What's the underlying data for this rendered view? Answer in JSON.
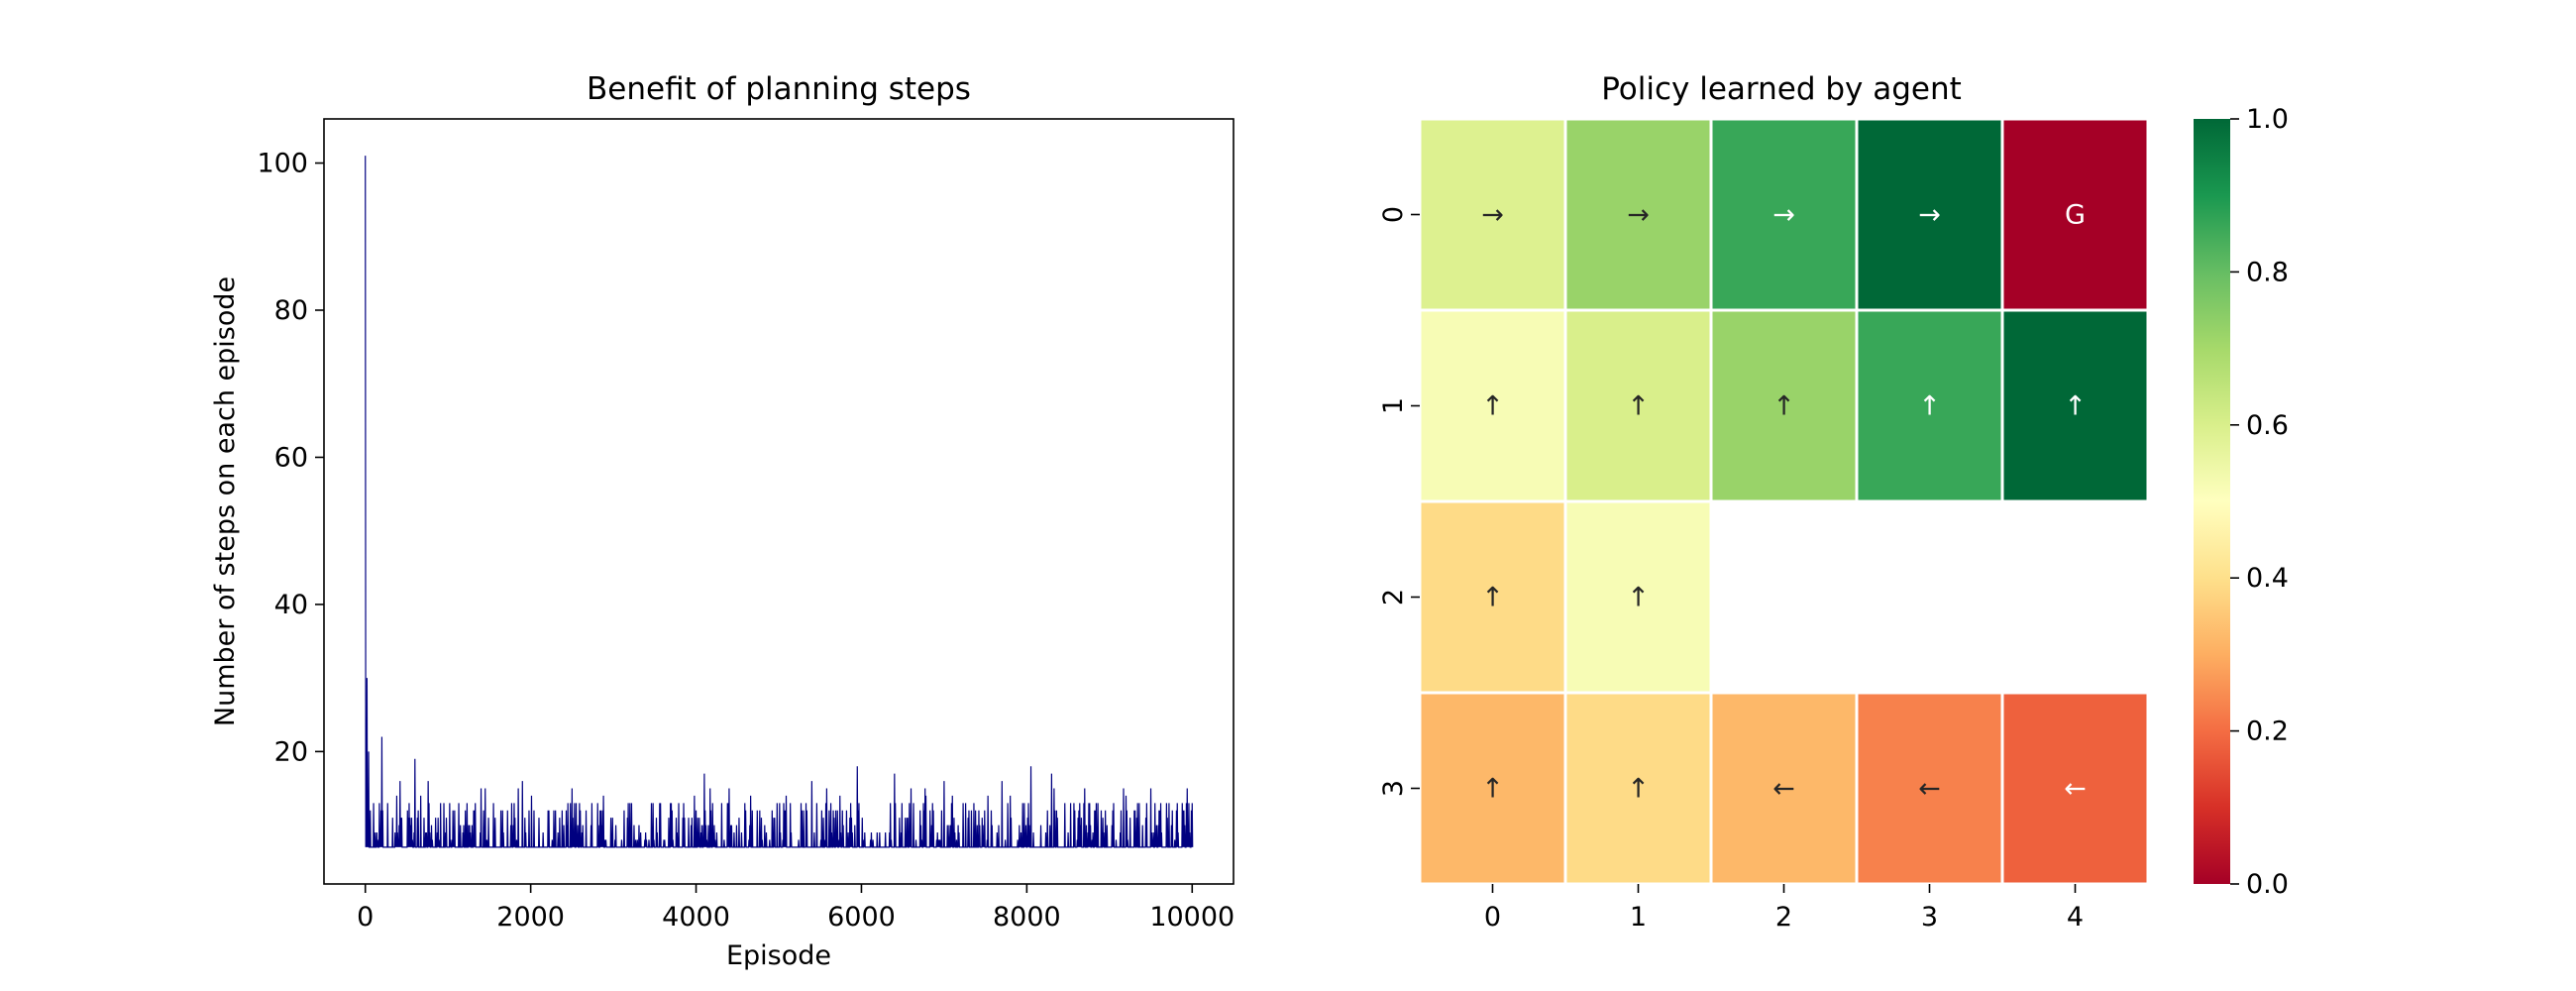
{
  "chart_data": [
    {
      "type": "line",
      "title": "Benefit of planning steps",
      "xlabel": "Episode",
      "ylabel": "Number of steps on each episode",
      "xlim": [
        -500,
        10500
      ],
      "ylim": [
        2,
        106
      ],
      "xticks": [
        0,
        2000,
        4000,
        6000,
        8000,
        10000
      ],
      "yticks": [
        20,
        40,
        60,
        80,
        100
      ],
      "grid": false,
      "series": [
        {
          "color": "#000080",
          "episodes": 10000,
          "baseline_min": 7,
          "peak_points": [
            [
              0,
              101
            ],
            [
              20,
              30
            ],
            [
              40,
              20
            ],
            [
              200,
              22
            ],
            [
              420,
              16
            ],
            [
              600,
              19
            ],
            [
              760,
              16
            ],
            [
              1400,
              15
            ],
            [
              1900,
              16
            ],
            [
              2500,
              15
            ],
            [
              4100,
              17
            ],
            [
              4400,
              15
            ],
            [
              5400,
              16
            ],
            [
              5950,
              18
            ],
            [
              6400,
              17
            ],
            [
              7000,
              16
            ],
            [
              7700,
              16
            ],
            [
              8050,
              18
            ],
            [
              8300,
              17
            ],
            [
              8700,
              15
            ],
            [
              9200,
              14
            ],
            [
              10000,
              13
            ]
          ],
          "typical_range": [
            7,
            13
          ]
        }
      ]
    },
    {
      "type": "heatmap",
      "title": "Policy learned by agent",
      "x_categories": [
        "0",
        "1",
        "2",
        "3",
        "4"
      ],
      "y_categories": [
        "0",
        "1",
        "2",
        "3"
      ],
      "colormap": "RdYlGn",
      "vmin": 0.0,
      "vmax": 1.0,
      "colorbar_ticks": [
        "0.0",
        "0.2",
        "0.4",
        "0.6",
        "0.8",
        "1.0"
      ],
      "cells": [
        [
          {
            "value": 0.59,
            "label": "→"
          },
          {
            "value": 0.72,
            "label": "→"
          },
          {
            "value": 0.86,
            "label": "→"
          },
          {
            "value": 1.0,
            "label": "→"
          },
          {
            "value": 0.0,
            "label": "G"
          }
        ],
        [
          {
            "value": 0.52,
            "label": "↑"
          },
          {
            "value": 0.6,
            "label": "↑"
          },
          {
            "value": 0.72,
            "label": "↑"
          },
          {
            "value": 0.86,
            "label": "↑"
          },
          {
            "value": 1.0,
            "label": "↑"
          }
        ],
        [
          {
            "value": 0.39,
            "label": "↑"
          },
          {
            "value": 0.52,
            "label": "↑"
          },
          null,
          null,
          null
        ],
        [
          {
            "value": 0.32,
            "label": "↑"
          },
          {
            "value": 0.39,
            "label": "↑"
          },
          {
            "value": 0.32,
            "label": "←"
          },
          {
            "value": 0.23,
            "label": "←"
          },
          {
            "value": 0.18,
            "label": "←"
          }
        ]
      ]
    }
  ]
}
